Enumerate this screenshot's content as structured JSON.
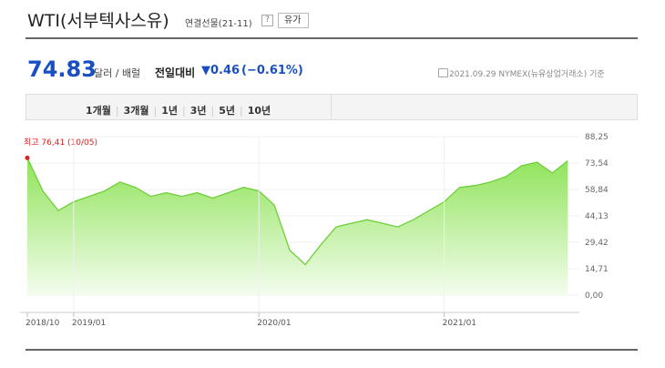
{
  "header": {
    "title": "WTI(서부텍사스유)",
    "subtitle": "연결선물(21-11)",
    "help": "?",
    "button": "유가"
  },
  "price": {
    "value": "74.83",
    "unit": "달러 / 배럴",
    "change_label": "전일대비",
    "change": "▼0.46",
    "change_pct": "(−0.61%)",
    "date_note": "2021.09.29 NYMEX(뉴유상업거래소) 기준"
  },
  "tabs": [
    "1개월",
    "3개월",
    "1년",
    "3년",
    "5년",
    "10년"
  ],
  "chart_data": {
    "type": "area",
    "annotation": "최고 76,41 (10/05)",
    "x": [
      "2018/10",
      "2018/11",
      "2018/12",
      "2019/01",
      "2019/02",
      "2019/03",
      "2019/04",
      "2019/05",
      "2019/06",
      "2019/07",
      "2019/08",
      "2019/09",
      "2019/10",
      "2019/11",
      "2019/12",
      "2020/01",
      "2020/02",
      "2020/03",
      "2020/04",
      "2020/05",
      "2020/06",
      "2020/07",
      "2020/08",
      "2020/09",
      "2020/10",
      "2020/11",
      "2020/12",
      "2021/01",
      "2021/02",
      "2021/03",
      "2021/04",
      "2021/05",
      "2021/06",
      "2021/07",
      "2021/08",
      "2021/09"
    ],
    "series": [
      {
        "name": "WTI",
        "color": "#6fcf3a",
        "values": [
          76.41,
          58,
          47,
          52,
          55,
          58,
          63,
          60,
          55,
          57,
          55,
          57,
          54,
          57,
          60,
          58,
          50,
          25,
          17,
          28,
          38,
          40,
          42,
          40,
          38,
          42,
          47,
          52,
          60,
          61,
          63,
          66,
          72,
          74,
          68,
          74.83
        ]
      }
    ],
    "ylim": [
      0,
      88.25
    ],
    "yticks": [
      {
        "value": 88.25,
        "label": "88,25"
      },
      {
        "value": 73.54,
        "label": "73,54"
      },
      {
        "value": 58.84,
        "label": "58,84"
      },
      {
        "value": 44.13,
        "label": "44,13"
      },
      {
        "value": 29.42,
        "label": "29,42"
      },
      {
        "value": 14.71,
        "label": "14,71"
      },
      {
        "value": 0,
        "label": "0,00"
      }
    ],
    "xticks": [
      "2018/10",
      "2019/01",
      "2020/01",
      "2021/01"
    ]
  }
}
